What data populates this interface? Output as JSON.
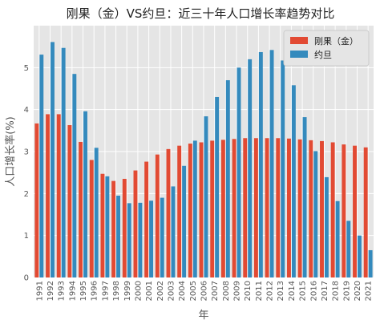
{
  "chart_data": {
    "type": "bar",
    "title": "刚果（金）VS约旦：近三十年人口增长率趋势对比",
    "xlabel": "年",
    "ylabel": "人口增长率(%)",
    "ylim": [
      0,
      6
    ],
    "yticks": [
      0,
      1,
      2,
      3,
      4,
      5
    ],
    "grid": true,
    "legend_position": "top-right",
    "categories": [
      "1991",
      "1992",
      "1993",
      "1994",
      "1995",
      "1996",
      "1997",
      "1998",
      "1999",
      "2000",
      "2001",
      "2002",
      "2003",
      "2004",
      "2005",
      "2006",
      "2007",
      "2008",
      "2009",
      "2010",
      "2011",
      "2012",
      "2013",
      "2014",
      "2015",
      "2016",
      "2017",
      "2018",
      "2019",
      "2020",
      "2021"
    ],
    "series": [
      {
        "name": "刚果（金）",
        "color": "#e24a33",
        "values": [
          3.67,
          3.89,
          3.89,
          3.63,
          3.23,
          2.8,
          2.47,
          2.3,
          2.35,
          2.55,
          2.76,
          2.93,
          3.06,
          3.14,
          3.19,
          3.22,
          3.26,
          3.28,
          3.3,
          3.32,
          3.32,
          3.32,
          3.32,
          3.31,
          3.29,
          3.27,
          3.25,
          3.22,
          3.17,
          3.14,
          3.1
        ]
      },
      {
        "name": "约旦",
        "color": "#348abd",
        "values": [
          5.31,
          5.61,
          5.47,
          4.85,
          3.96,
          3.09,
          2.41,
          1.95,
          1.77,
          1.78,
          1.83,
          1.9,
          2.17,
          2.66,
          3.26,
          3.84,
          4.3,
          4.7,
          5.0,
          5.2,
          5.37,
          5.42,
          5.17,
          4.58,
          3.82,
          3.01,
          2.39,
          1.82,
          1.35,
          1.0,
          0.65
        ]
      }
    ]
  }
}
